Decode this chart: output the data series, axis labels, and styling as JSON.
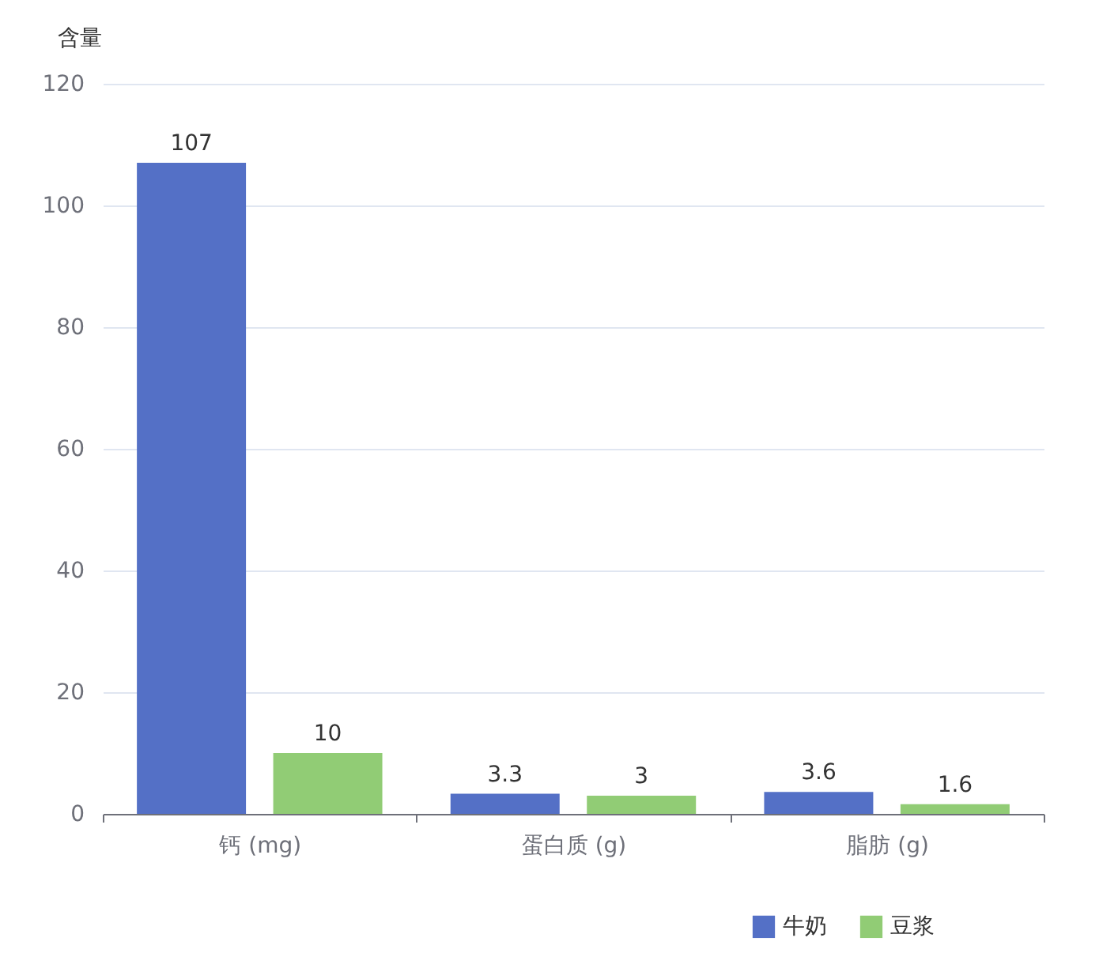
{
  "chart_data": {
    "type": "bar",
    "ylabel": "含量",
    "categories": [
      "钙 (mg)",
      "蛋白质 (g)",
      "脂肪 (g)"
    ],
    "series": [
      {
        "name": "牛奶",
        "color": "#5470c6",
        "values": [
          107,
          3.3,
          3.6
        ]
      },
      {
        "name": "豆浆",
        "color": "#91cc75",
        "values": [
          10,
          3,
          1.6
        ]
      }
    ],
    "ylim": [
      0,
      120
    ],
    "yticks": [
      0,
      20,
      40,
      60,
      80,
      100,
      120
    ],
    "grid": "y",
    "legend": "bottom right",
    "data_labels": true
  }
}
